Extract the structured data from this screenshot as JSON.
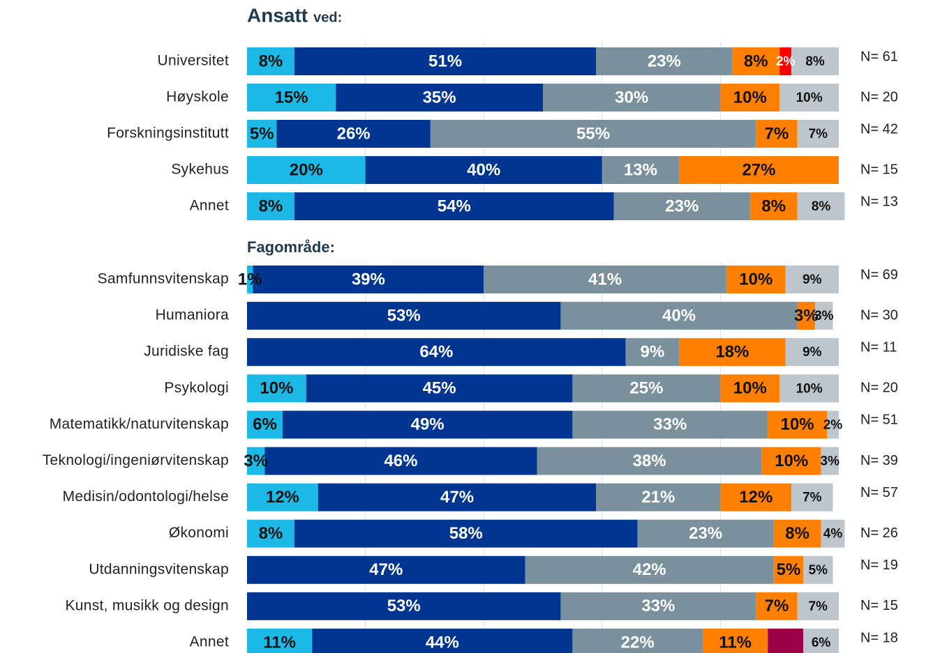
{
  "chart_data": [
    {
      "type": "bar",
      "orientation": "horizontal",
      "stacked": true,
      "title": "Ansatt",
      "subtitle": "ved:",
      "categories": [
        "Universitet",
        "Høyskole",
        "Forskningsinstitutt",
        "Sykehus",
        "Annet"
      ],
      "annotations": [
        "N= 61",
        "N= 20",
        "N= 42",
        "N= 15",
        "N= 13"
      ],
      "xlim": [
        0,
        100
      ],
      "xticks": [
        20,
        40,
        60,
        80
      ],
      "grid": true,
      "series": [
        {
          "color": "#1cb8e6",
          "values": [
            8,
            15,
            5,
            20,
            8
          ],
          "value_labels": [
            "8%",
            "15%",
            "5%",
            "20%",
            "8%"
          ]
        },
        {
          "color": "#003591",
          "values": [
            51,
            35,
            26,
            40,
            54
          ],
          "value_labels": [
            "51%",
            "35%",
            "26%",
            "40%",
            "54%"
          ]
        },
        {
          "color": "#7a909c",
          "values": [
            23,
            30,
            55,
            13,
            23
          ],
          "value_labels": [
            "23%",
            "30%",
            "55%",
            "13%",
            "23%"
          ]
        },
        {
          "color": "#ff8000",
          "values": [
            8,
            10,
            7,
            27,
            8
          ],
          "value_labels": [
            "8%",
            "10%",
            "7%",
            "27%",
            "8%"
          ]
        },
        {
          "color": "#ff0000",
          "values": [
            2,
            null,
            null,
            null,
            null
          ],
          "value_labels": [
            "2%",
            null,
            null,
            null,
            null
          ]
        },
        {
          "color": "#bcc6cc",
          "values": [
            8,
            10,
            7,
            null,
            8
          ],
          "value_labels": [
            "8%",
            "10%",
            "7%",
            null,
            "8%"
          ]
        }
      ]
    },
    {
      "type": "bar",
      "orientation": "horizontal",
      "stacked": true,
      "title": "Fagområde:",
      "categories": [
        "Samfunnsvitenskap",
        "Humaniora",
        "Juridiske fag",
        "Psykologi",
        "Matematikk/naturvitenskap",
        "Teknologi/ingeniørvitenskap",
        "Medisin/odontologi/helse",
        "Økonomi",
        "Utdanningsvitenskap",
        "Kunst, musikk og design",
        "Annet"
      ],
      "annotations": [
        "N= 69",
        "N= 30",
        "N= 11",
        "N= 20",
        "N= 51",
        "N= 39",
        "N= 57",
        "N= 26",
        "N= 19",
        "N= 15",
        "N= 18"
      ],
      "xlim": [
        0,
        100
      ],
      "xticks": [
        20,
        40,
        60,
        80
      ],
      "grid": true,
      "series": [
        {
          "color": "#1cb8e6",
          "values": [
            1,
            null,
            null,
            10,
            6,
            3,
            12,
            8,
            null,
            null,
            11
          ],
          "value_labels": [
            "1%",
            null,
            null,
            "10%",
            "6%",
            "3%",
            "12%",
            "8%",
            null,
            null,
            "11%"
          ]
        },
        {
          "color": "#003591",
          "values": [
            39,
            53,
            64,
            45,
            49,
            46,
            47,
            58,
            47,
            53,
            44
          ],
          "value_labels": [
            "39%",
            "53%",
            "64%",
            "45%",
            "49%",
            "46%",
            "47%",
            "58%",
            "47%",
            "53%",
            "44%"
          ]
        },
        {
          "color": "#7a909c",
          "values": [
            41,
            40,
            9,
            25,
            33,
            38,
            21,
            23,
            42,
            33,
            22
          ],
          "value_labels": [
            "41%",
            "40%",
            "9%",
            "25%",
            "33%",
            "38%",
            "21%",
            "23%",
            "42%",
            "33%",
            "22%"
          ]
        },
        {
          "color": "#ff8000",
          "values": [
            10,
            3,
            18,
            10,
            10,
            10,
            12,
            8,
            5,
            7,
            11
          ],
          "value_labels": [
            "10%",
            "3%",
            "18%",
            "10%",
            "10%",
            "10%",
            "12%",
            "8%",
            "5%",
            "7%",
            "11%"
          ]
        },
        {
          "color": "#9c0047",
          "values": [
            null,
            null,
            null,
            null,
            null,
            null,
            null,
            null,
            null,
            null,
            6
          ]
        },
        {
          "color": "#bcc6cc",
          "values": [
            9,
            3,
            9,
            10,
            2,
            3,
            7,
            4,
            5,
            7,
            6
          ],
          "value_labels": [
            "9%",
            "3%",
            "9%",
            "10%",
            "2%",
            "3%",
            "7%",
            "4%",
            "5%",
            "7%",
            "6%"
          ]
        }
      ]
    }
  ]
}
